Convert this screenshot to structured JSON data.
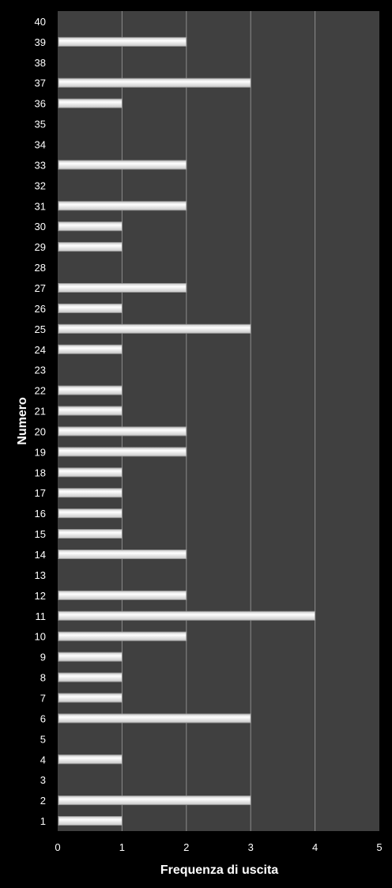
{
  "chart_data": {
    "type": "bar",
    "orientation": "horizontal",
    "categories": [
      "1",
      "2",
      "3",
      "4",
      "5",
      "6",
      "7",
      "8",
      "9",
      "10",
      "11",
      "12",
      "13",
      "14",
      "15",
      "16",
      "17",
      "18",
      "19",
      "20",
      "21",
      "22",
      "23",
      "24",
      "25",
      "26",
      "27",
      "28",
      "29",
      "30",
      "31",
      "32",
      "33",
      "34",
      "35",
      "36",
      "37",
      "38",
      "39",
      "40"
    ],
    "values": [
      1,
      3,
      0,
      1,
      0,
      3,
      1,
      1,
      1,
      2,
      4,
      2,
      0,
      2,
      1,
      1,
      1,
      1,
      2,
      2,
      1,
      1,
      0,
      1,
      3,
      1,
      2,
      0,
      1,
      1,
      2,
      0,
      2,
      0,
      0,
      1,
      3,
      0,
      2,
      0
    ],
    "xlabel": "Frequenza di uscita",
    "ylabel": "Numero",
    "xlim": [
      0,
      5
    ],
    "xticks": [
      "0",
      "1",
      "2",
      "3",
      "4",
      "5"
    ],
    "grid": "vertical",
    "legend": "none"
  },
  "colors": {
    "background": "#000000",
    "plot_area": "#404040",
    "gridline": "#8c8c8c",
    "bar_fill": "#ffffff",
    "bar_shade": "#c8c8c8",
    "text": "#ffffff"
  }
}
